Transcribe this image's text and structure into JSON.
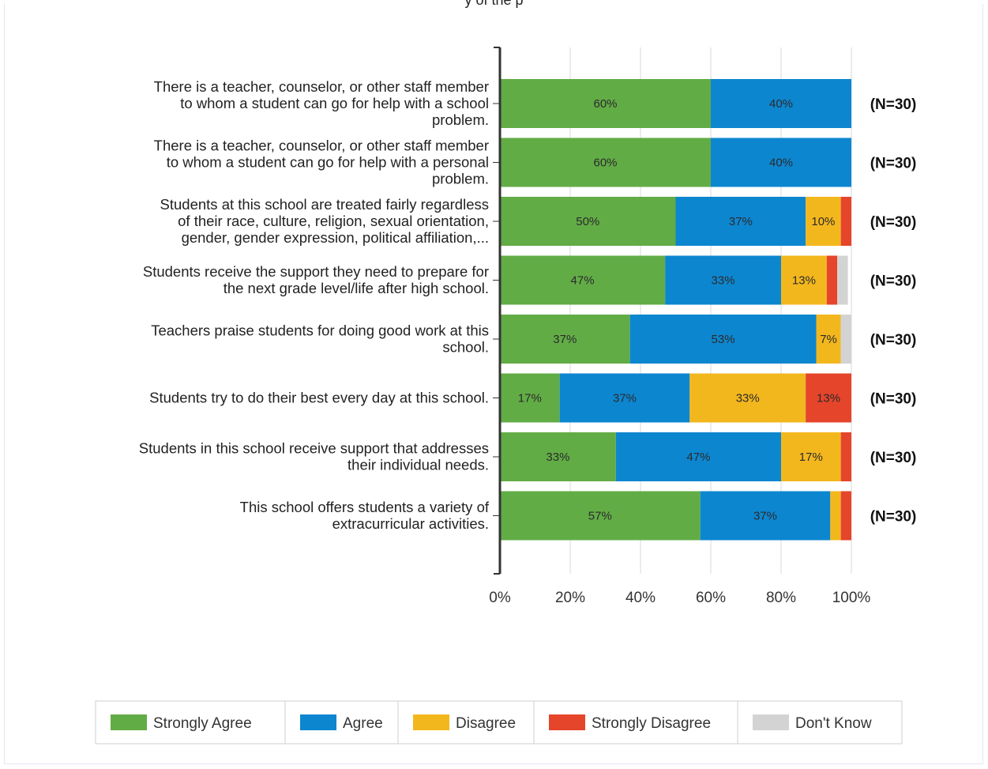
{
  "top_text": "y of the p",
  "chart_data": {
    "type": "bar",
    "orientation": "horizontal",
    "stacked": true,
    "categories": [
      [
        "There is a teacher, counselor, or other staff member",
        "to whom a student can go for help with a school",
        "problem."
      ],
      [
        "There is a teacher, counselor, or other staff member",
        "to whom a student can go for help with a personal",
        "problem."
      ],
      [
        "Students at this school are treated fairly regardless",
        "of their race, culture, religion, sexual orientation,",
        "gender, gender expression, political affiliation,..."
      ],
      [
        "Students receive the support they need to prepare for",
        "the next grade level/life after high school."
      ],
      [
        "Teachers praise students for doing good work at this",
        "school."
      ],
      [
        "Students try to do their best every day at this school."
      ],
      [
        "Students in this school receive support that addresses",
        "their individual needs."
      ],
      [
        "This school offers students a variety of",
        "extracurricular activities."
      ]
    ],
    "series": [
      {
        "name": "Strongly Agree",
        "color": "#62ac46",
        "values": [
          60,
          60,
          50,
          47,
          37,
          17,
          33,
          57
        ],
        "labels": [
          "60%",
          "60%",
          "50%",
          "47%",
          "37%",
          "17%",
          "33%",
          "57%"
        ]
      },
      {
        "name": "Agree",
        "color": "#0d86d0",
        "values": [
          40,
          40,
          37,
          33,
          53,
          37,
          47,
          37
        ],
        "labels": [
          "40%",
          "40%",
          "37%",
          "33%",
          "53%",
          "37%",
          "47%",
          "37%"
        ]
      },
      {
        "name": "Disagree",
        "color": "#f3b71e",
        "values": [
          0,
          0,
          10,
          13,
          7,
          33,
          17,
          3
        ],
        "labels": [
          "",
          "",
          "10%",
          "13%",
          "7%",
          "33%",
          "17%",
          ""
        ]
      },
      {
        "name": "Strongly Disagree",
        "color": "#e5452b",
        "values": [
          0,
          0,
          3,
          3,
          0,
          13,
          3,
          3
        ],
        "labels": [
          "",
          "",
          "",
          "",
          "",
          "13%",
          "",
          ""
        ]
      },
      {
        "name": "Don't Know",
        "color": "#d3d3d3",
        "values": [
          0,
          0,
          0,
          3,
          3,
          0,
          0,
          0
        ],
        "labels": [
          "",
          "",
          "",
          "",
          "",
          "",
          "",
          ""
        ]
      }
    ],
    "n_labels": [
      "(N=30)",
      "(N=30)",
      "(N=30)",
      "(N=30)",
      "(N=30)",
      "(N=30)",
      "(N=30)",
      "(N=30)"
    ],
    "xlim": [
      0,
      100
    ],
    "xticks": [
      "0%",
      "20%",
      "40%",
      "60%",
      "80%",
      "100%"
    ],
    "grid": true,
    "legend": "bottom"
  }
}
